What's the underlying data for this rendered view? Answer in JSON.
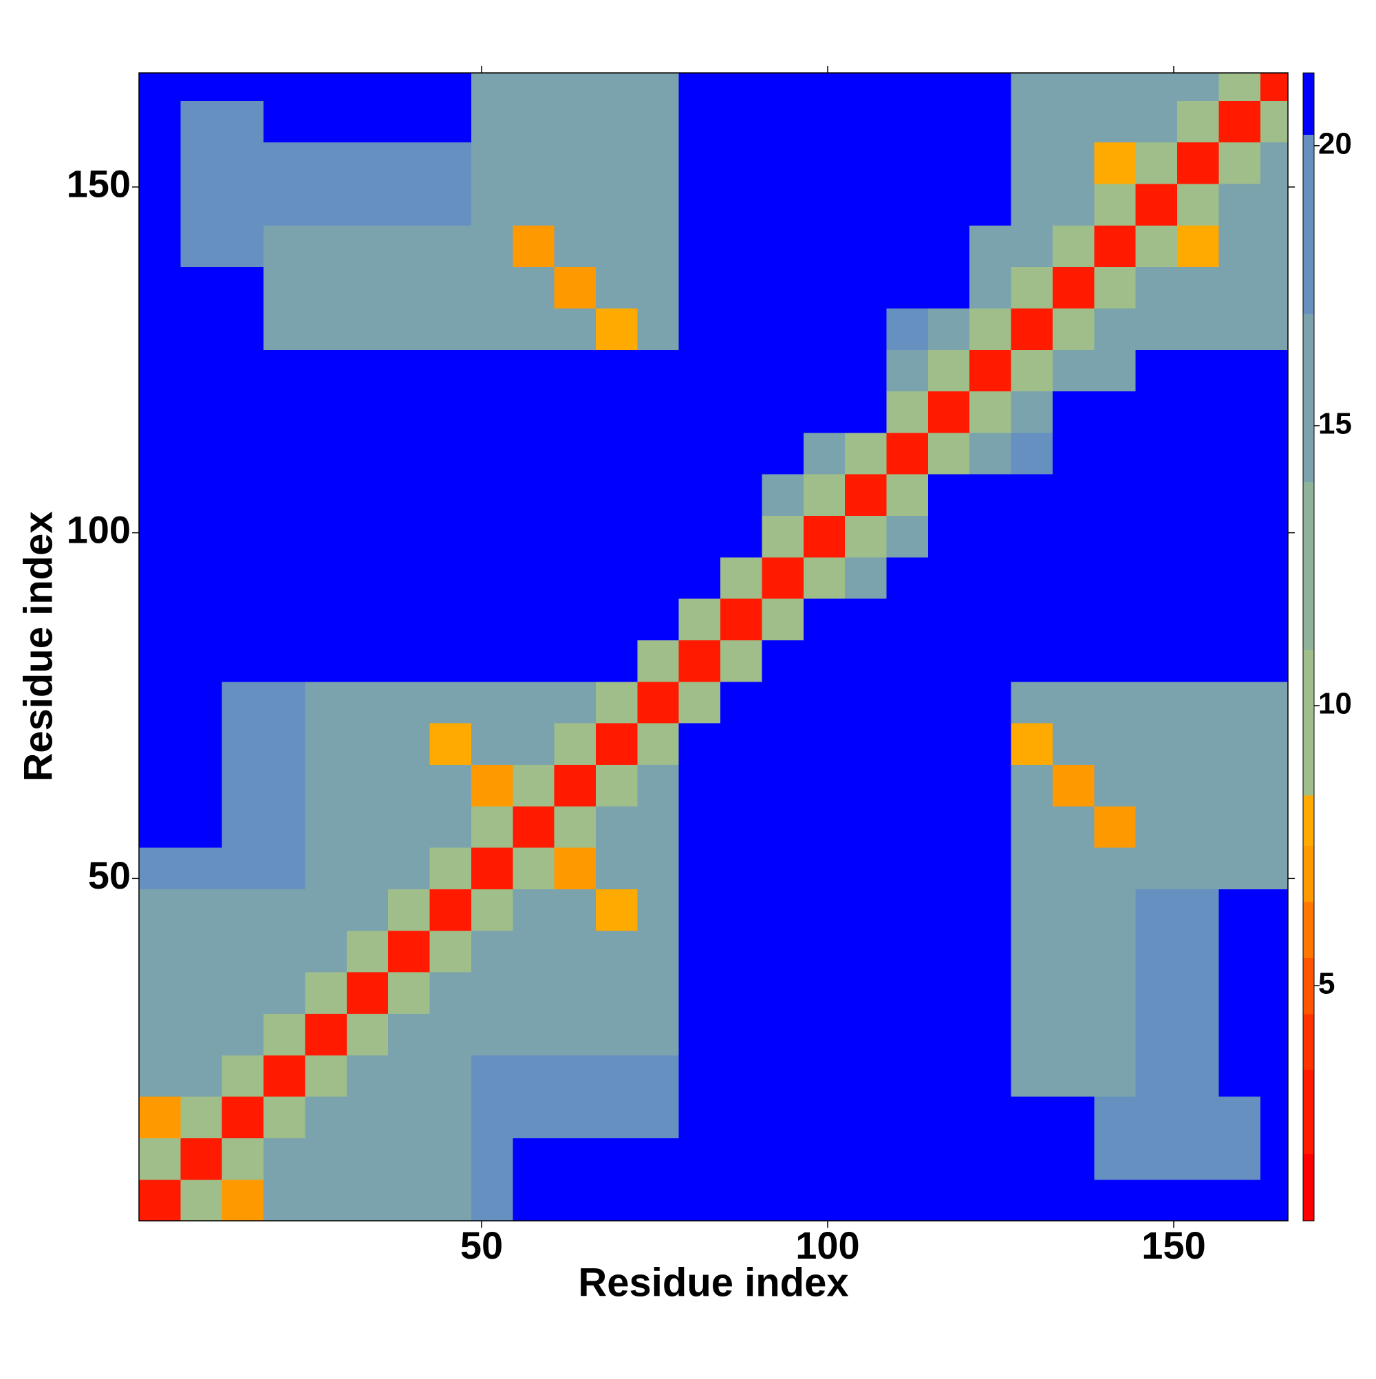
{
  "chart_data": {
    "type": "heatmap",
    "xlabel": "Residue index",
    "ylabel": "Residue index",
    "xlim": [
      0.5,
      166.5
    ],
    "ylim": [
      0.5,
      166.5
    ],
    "xticks": [
      50,
      100,
      150
    ],
    "yticks": [
      50,
      100,
      150
    ],
    "x": [
      3.5,
      9.5,
      15.5,
      21.5,
      27.5,
      33.5,
      39.5,
      45.5,
      51.5,
      57.5,
      63.5,
      69.5,
      75.5,
      81.5,
      87.5,
      93.5,
      99.5,
      105.5,
      111.5,
      117.5,
      123.5,
      129.5,
      135.5,
      141.5,
      147.5,
      153.5,
      159.5,
      165.5
    ],
    "y": [
      3.5,
      9.5,
      15.5,
      21.5,
      27.5,
      33.5,
      39.5,
      45.5,
      51.5,
      57.5,
      63.5,
      69.5,
      75.5,
      81.5,
      87.5,
      93.5,
      99.5,
      105.5,
      111.5,
      117.5,
      123.5,
      129.5,
      135.5,
      141.5,
      147.5,
      153.5,
      159.5,
      165.5
    ],
    "z": [
      [
        3,
        9,
        7,
        16,
        16,
        16,
        16,
        16,
        19,
        21,
        21,
        21,
        21,
        21,
        21,
        21,
        21,
        21,
        21,
        21,
        21,
        21,
        21,
        21,
        21,
        21,
        21,
        21
      ],
      [
        9,
        3,
        9,
        16,
        16,
        16,
        16,
        16,
        19,
        21,
        21,
        21,
        21,
        21,
        21,
        21,
        21,
        21,
        21,
        21,
        21,
        21,
        21,
        19,
        19,
        19,
        19,
        21
      ],
      [
        7,
        9,
        3,
        9,
        16,
        16,
        16,
        16,
        19,
        19,
        19,
        19,
        19,
        21,
        21,
        21,
        21,
        21,
        21,
        21,
        21,
        21,
        21,
        19,
        19,
        19,
        19,
        21
      ],
      [
        16,
        16,
        9,
        3,
        9,
        16,
        16,
        16,
        19,
        19,
        19,
        19,
        19,
        21,
        21,
        21,
        21,
        21,
        21,
        21,
        21,
        15,
        15,
        15,
        19,
        19,
        21,
        21
      ],
      [
        16,
        16,
        16,
        9,
        3,
        9,
        16,
        16,
        16,
        16,
        16,
        16,
        16,
        21,
        21,
        21,
        21,
        21,
        21,
        21,
        21,
        15,
        15,
        15,
        19,
        19,
        21,
        21
      ],
      [
        16,
        16,
        16,
        16,
        9,
        3,
        9,
        16,
        16,
        16,
        16,
        16,
        16,
        21,
        21,
        21,
        21,
        21,
        21,
        21,
        21,
        15,
        15,
        15,
        19,
        19,
        21,
        21
      ],
      [
        16,
        16,
        16,
        16,
        16,
        9,
        3,
        9,
        16,
        16,
        16,
        16,
        16,
        21,
        21,
        21,
        21,
        21,
        21,
        21,
        21,
        15,
        15,
        15,
        19,
        19,
        21,
        21
      ],
      [
        16,
        16,
        16,
        16,
        16,
        16,
        9,
        3,
        9,
        16,
        16,
        8,
        16,
        21,
        21,
        21,
        21,
        21,
        21,
        21,
        21,
        15,
        15,
        15,
        19,
        19,
        21,
        21
      ],
      [
        19,
        19,
        19,
        19,
        16,
        16,
        16,
        9,
        3,
        9,
        7,
        16,
        16,
        21,
        21,
        21,
        21,
        21,
        21,
        21,
        21,
        15,
        15,
        15,
        15,
        15,
        15,
        15
      ],
      [
        21,
        21,
        19,
        19,
        16,
        16,
        16,
        16,
        9,
        3,
        9,
        16,
        16,
        21,
        21,
        21,
        21,
        21,
        21,
        21,
        21,
        15,
        15,
        7,
        15,
        15,
        15,
        15
      ],
      [
        21,
        21,
        19,
        19,
        16,
        16,
        16,
        16,
        7,
        9,
        3,
        9,
        16,
        21,
        21,
        21,
        21,
        21,
        21,
        21,
        21,
        15,
        7,
        15,
        15,
        15,
        15,
        15
      ],
      [
        21,
        21,
        19,
        19,
        16,
        16,
        16,
        8,
        16,
        16,
        9,
        3,
        9,
        21,
        21,
        21,
        21,
        21,
        21,
        21,
        21,
        8,
        15,
        15,
        15,
        15,
        15,
        15
      ],
      [
        21,
        21,
        19,
        19,
        16,
        16,
        16,
        16,
        16,
        16,
        16,
        9,
        3,
        9,
        21,
        21,
        21,
        21,
        21,
        21,
        21,
        15,
        15,
        15,
        15,
        15,
        15,
        15
      ],
      [
        21,
        21,
        21,
        21,
        21,
        21,
        21,
        21,
        21,
        21,
        21,
        21,
        9,
        3,
        9,
        21,
        21,
        21,
        21,
        21,
        21,
        21,
        21,
        21,
        21,
        21,
        21,
        21
      ],
      [
        21,
        21,
        21,
        21,
        21,
        21,
        21,
        21,
        21,
        21,
        21,
        21,
        21,
        9,
        3,
        9,
        21,
        21,
        21,
        21,
        21,
        21,
        21,
        21,
        21,
        21,
        21,
        21
      ],
      [
        21,
        21,
        21,
        21,
        21,
        21,
        21,
        21,
        21,
        21,
        21,
        21,
        21,
        21,
        9,
        3,
        9,
        17,
        21,
        21,
        21,
        21,
        21,
        21,
        21,
        21,
        21,
        21
      ],
      [
        21,
        21,
        21,
        21,
        21,
        21,
        21,
        21,
        21,
        21,
        21,
        21,
        21,
        21,
        21,
        9,
        3,
        9,
        17,
        21,
        21,
        21,
        21,
        21,
        21,
        21,
        21,
        21
      ],
      [
        21,
        21,
        21,
        21,
        21,
        21,
        21,
        21,
        21,
        21,
        21,
        21,
        21,
        21,
        21,
        17,
        9,
        3,
        9,
        21,
        21,
        21,
        21,
        21,
        21,
        21,
        21,
        21
      ],
      [
        21,
        21,
        21,
        21,
        21,
        21,
        21,
        21,
        21,
        21,
        21,
        21,
        21,
        21,
        21,
        21,
        17,
        9,
        3,
        9,
        17,
        19,
        21,
        21,
        21,
        21,
        21,
        21
      ],
      [
        21,
        21,
        21,
        21,
        21,
        21,
        21,
        21,
        21,
        21,
        21,
        21,
        21,
        21,
        21,
        21,
        21,
        21,
        9,
        3,
        9,
        17,
        21,
        21,
        21,
        21,
        21,
        21
      ],
      [
        21,
        21,
        21,
        21,
        21,
        21,
        21,
        21,
        21,
        21,
        21,
        21,
        21,
        21,
        21,
        21,
        21,
        21,
        17,
        9,
        3,
        9,
        16,
        16,
        21,
        21,
        21,
        21
      ],
      [
        21,
        21,
        21,
        15,
        15,
        15,
        15,
        15,
        15,
        15,
        15,
        8,
        15,
        21,
        21,
        21,
        21,
        21,
        19,
        17,
        9,
        3,
        9,
        15,
        15,
        15,
        15,
        15
      ],
      [
        21,
        21,
        21,
        15,
        15,
        15,
        15,
        15,
        15,
        15,
        7,
        15,
        15,
        21,
        21,
        21,
        21,
        21,
        21,
        21,
        16,
        9,
        3,
        9,
        15,
        15,
        15,
        15
      ],
      [
        21,
        19,
        19,
        15,
        15,
        15,
        15,
        15,
        15,
        7,
        15,
        15,
        15,
        21,
        21,
        21,
        21,
        21,
        21,
        21,
        16,
        15,
        9,
        3,
        9,
        8,
        15,
        15
      ],
      [
        21,
        19,
        19,
        19,
        19,
        19,
        19,
        19,
        15,
        15,
        15,
        15,
        15,
        21,
        21,
        21,
        21,
        21,
        21,
        21,
        21,
        15,
        15,
        9,
        3,
        9,
        15,
        15
      ],
      [
        21,
        19,
        19,
        19,
        19,
        19,
        19,
        19,
        15,
        15,
        15,
        15,
        15,
        21,
        21,
        21,
        21,
        21,
        21,
        21,
        21,
        15,
        15,
        8,
        9,
        3,
        9,
        15
      ],
      [
        21,
        19,
        19,
        21,
        21,
        21,
        21,
        21,
        15,
        15,
        15,
        15,
        15,
        21,
        21,
        21,
        21,
        21,
        21,
        21,
        21,
        15,
        15,
        15,
        15,
        9,
        3,
        9
      ],
      [
        21,
        21,
        21,
        21,
        21,
        21,
        21,
        21,
        15,
        15,
        15,
        15,
        15,
        21,
        21,
        21,
        21,
        21,
        21,
        21,
        21,
        15,
        15,
        15,
        15,
        15,
        9,
        3
      ]
    ],
    "colorbar": {
      "lim": [
        0.8,
        21.3
      ],
      "ticks": [
        5,
        10,
        15,
        20
      ],
      "bands": [
        {
          "max": 2,
          "color": "#ff0000"
        },
        {
          "max": 3.5,
          "color": "#ff1a00"
        },
        {
          "max": 4.5,
          "color": "#ff3300"
        },
        {
          "max": 5.5,
          "color": "#ff5500"
        },
        {
          "max": 6.5,
          "color": "#ff7700"
        },
        {
          "max": 7.5,
          "color": "#ff9900"
        },
        {
          "max": 8.4,
          "color": "#ffaa00"
        },
        {
          "max": 11,
          "color": "#9fbe8a"
        },
        {
          "max": 14,
          "color": "#8fb39a"
        },
        {
          "max": 17,
          "color": "#7aa3ae"
        },
        {
          "max": 20.2,
          "color": "#6690c0"
        },
        {
          "max": 21.3,
          "color": "#0000ff"
        }
      ]
    }
  }
}
